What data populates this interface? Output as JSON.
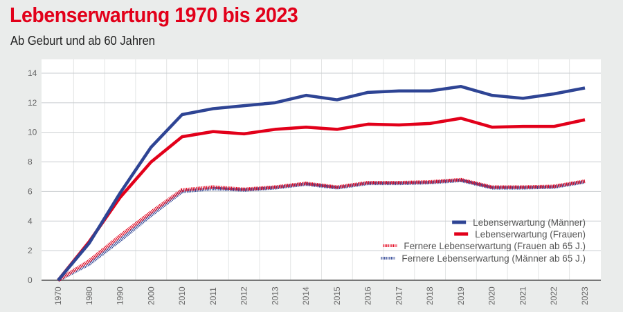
{
  "title": "Lebenserwartung 1970 bis 2023",
  "subtitle": "Ab Geburt und ab 60 Jahren",
  "chart_data": {
    "type": "line",
    "title": "Lebenserwartung 1970 bis 2023",
    "subtitle": "Ab Geburt und ab 60 Jahren",
    "categories": [
      "1970",
      "1980",
      "1990",
      "2000",
      "2010",
      "2011",
      "2012",
      "2013",
      "2014",
      "2015",
      "2016",
      "2017",
      "2018",
      "2019",
      "2020",
      "2021",
      "2022",
      "2023"
    ],
    "ylim": [
      0,
      14
    ],
    "yticks": [
      "0",
      "2",
      "4",
      "6",
      "8",
      "10",
      "12",
      "14"
    ],
    "grid": true,
    "legend": "bottom-right",
    "series": [
      {
        "name": "Lebenserwartung (Männer)",
        "color": "#2e4494",
        "style": "solid",
        "values": [
          0,
          2.5,
          5.9,
          9.0,
          11.2,
          11.6,
          11.8,
          12.0,
          12.5,
          12.2,
          12.7,
          12.8,
          12.8,
          13.1,
          12.5,
          12.3,
          12.6,
          13.0
        ]
      },
      {
        "name": "Lebenserwartung (Frauen)",
        "color": "#e2001a",
        "style": "solid",
        "values": [
          0,
          2.6,
          5.6,
          8.0,
          9.7,
          10.05,
          9.9,
          10.2,
          10.35,
          10.2,
          10.55,
          10.5,
          10.6,
          10.95,
          10.35,
          10.4,
          10.4,
          10.85
        ]
      },
      {
        "name": "Fernere Lebenserwartung (Frauen ab 65 J.)",
        "color": "#e2001a",
        "style": "dotted",
        "values": [
          0,
          1.3,
          3.0,
          4.6,
          6.1,
          6.3,
          6.15,
          6.3,
          6.55,
          6.3,
          6.6,
          6.6,
          6.65,
          6.8,
          6.3,
          6.3,
          6.35,
          6.7
        ]
      },
      {
        "name": "Fernere Lebenserwartung (Männer ab 65 J.)",
        "color": "#2e4494",
        "style": "dotted",
        "values": [
          0,
          1.1,
          2.7,
          4.4,
          6.0,
          6.2,
          6.1,
          6.25,
          6.5,
          6.25,
          6.55,
          6.55,
          6.6,
          6.75,
          6.25,
          6.25,
          6.3,
          6.65
        ]
      }
    ]
  }
}
